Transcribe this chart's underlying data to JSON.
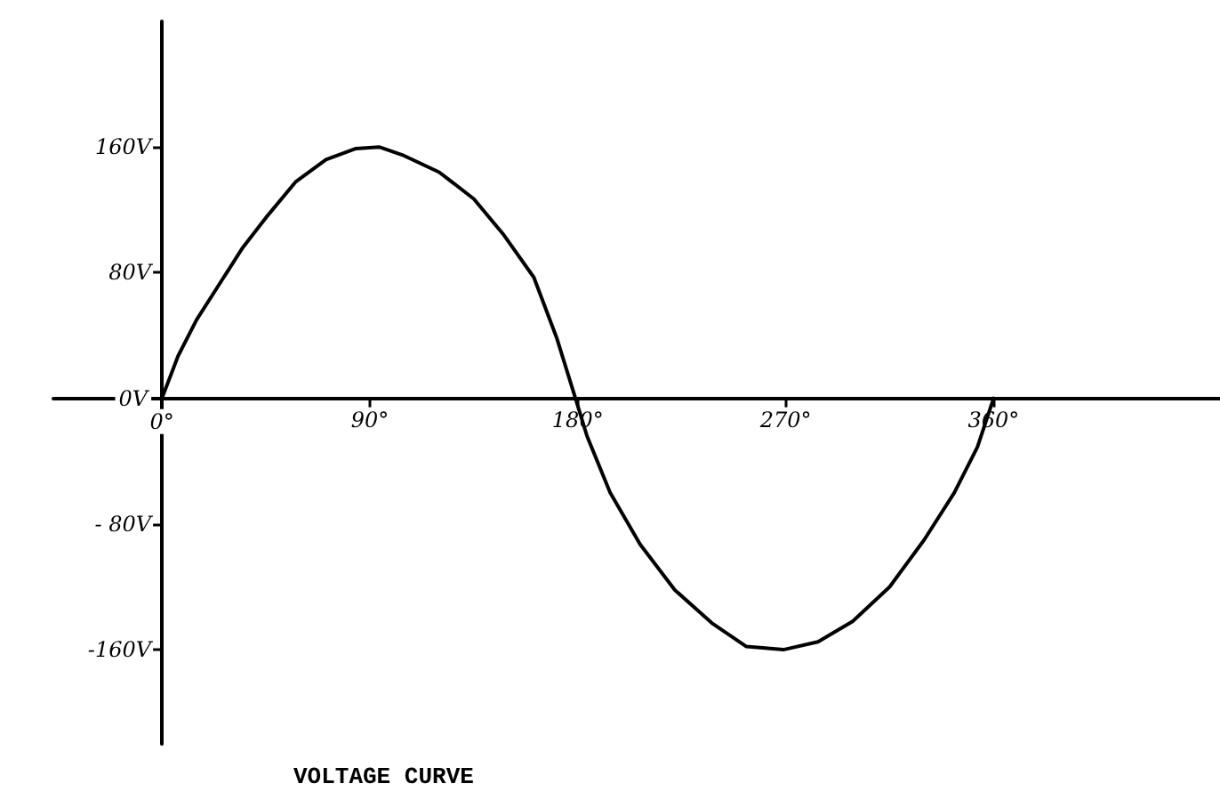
{
  "chart_data": {
    "type": "line",
    "title": "VOLTAGE CURVE",
    "x": [
      0,
      7,
      15,
      25,
      35,
      45,
      58,
      71,
      84,
      94,
      104,
      120,
      135,
      148,
      161,
      171,
      179,
      184,
      194,
      207,
      222,
      238,
      253,
      269,
      284,
      299,
      315,
      330,
      343,
      353,
      360
    ],
    "values": [
      0,
      27,
      50,
      73,
      96,
      115,
      138,
      152,
      159,
      160,
      155,
      144,
      127,
      104,
      77,
      38,
      0,
      -24,
      -60,
      -93,
      -122,
      -143,
      -158,
      -160,
      -155,
      -142,
      -120,
      -90,
      -60,
      -31,
      0
    ],
    "color": "#000000",
    "marker": "none",
    "line_style": "solid",
    "xlim": [
      -47,
      458
    ],
    "xticks": [
      {
        "value": 0,
        "label": "0°"
      },
      {
        "value": 90,
        "label": "90°"
      },
      {
        "value": 180,
        "label": "180°"
      },
      {
        "value": 270,
        "label": "270°"
      },
      {
        "value": 360,
        "label": "360°"
      }
    ],
    "ylim": [
      -220,
      240
    ],
    "yticks": [
      {
        "value": -160,
        "label": "-160V"
      },
      {
        "value": -80,
        "label": "- 80V"
      },
      {
        "value": 0,
        "label": "0V"
      },
      {
        "value": 80,
        "label": "80V"
      },
      {
        "value": 160,
        "label": "160V"
      }
    ]
  }
}
